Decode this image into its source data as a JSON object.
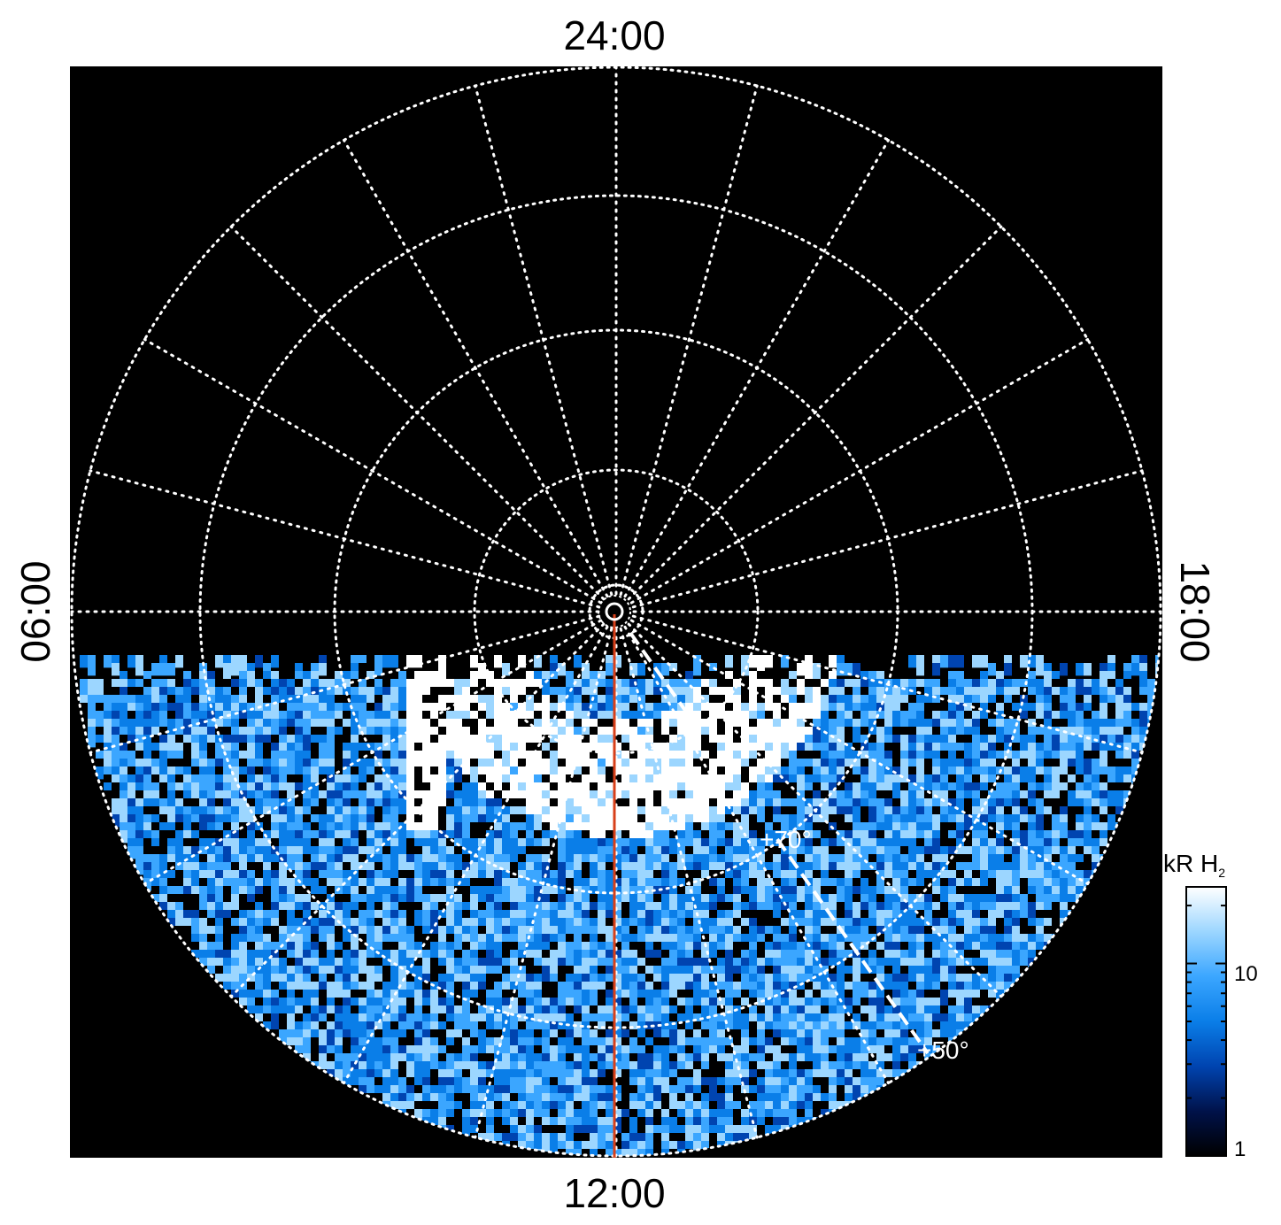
{
  "map": {
    "local_time_labels": {
      "top": "24:00",
      "bottom": "12:00",
      "left": "06:00",
      "right": "18:00"
    },
    "latitude_annotations": [
      "+70°",
      "+50°"
    ],
    "colors": {
      "background": "#000000",
      "grid": "#ffffff",
      "meridian_line": "#d8401a"
    }
  },
  "colorbar": {
    "title": "kR H",
    "title_subscript": "2",
    "scale": "log",
    "min": 1,
    "max": 25,
    "tick_labels": [
      "10",
      "1"
    ],
    "colors": [
      "#000000",
      "#00124a",
      "#0044b0",
      "#0a7ee8",
      "#3ba6ff",
      "#9cd6ff",
      "#ffffff"
    ]
  }
}
